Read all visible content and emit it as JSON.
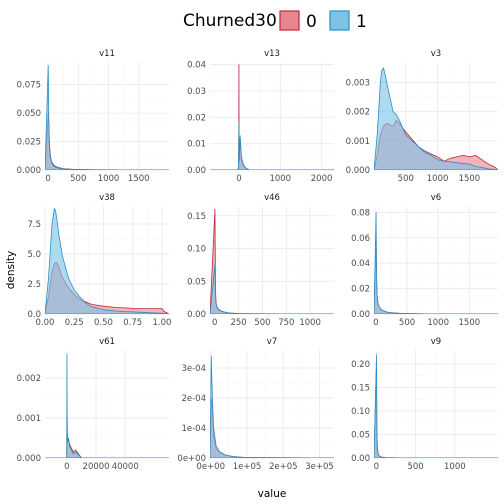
{
  "chart_data": {
    "type": "area",
    "facet_by": "variable",
    "xlabel": "value",
    "ylabel": "density",
    "grid": true,
    "legend": {
      "title": "Churned30",
      "position": "top",
      "items": [
        {
          "label": "0",
          "fill": "#E6868F",
          "stroke": "#C0283A"
        },
        {
          "label": "1",
          "fill": "#7CC4E6",
          "stroke": "#2A8FC4"
        }
      ]
    },
    "overlap_fill": "#7E84A9",
    "panels": [
      {
        "title": "v11",
        "xlim": [
          -50,
          2000
        ],
        "ylim": [
          0,
          0.095
        ],
        "xticks": [
          0,
          500,
          1000,
          1500
        ],
        "xtick_labels": [
          "0",
          "500",
          "1000",
          "1500"
        ],
        "yticks": [
          0,
          0.025,
          0.05,
          0.075
        ],
        "ytick_labels": [
          "0.000",
          "0.025",
          "0.050",
          "0.075"
        ],
        "series": [
          {
            "name": "0",
            "x": [
              -50,
              5,
              15,
              25,
              40,
              60,
              100,
              150,
              250,
              400,
              700,
              1200,
              2000
            ],
            "y": [
              0,
              0.05,
              0.038,
              0.022,
              0.012,
              0.007,
              0.004,
              0.0025,
              0.0012,
              0.0006,
              0.0003,
              0.0001,
              0
            ]
          },
          {
            "name": "1",
            "x": [
              -50,
              3,
              8,
              12,
              20,
              35,
              60,
              100,
              200,
              400,
              800,
              2000
            ],
            "y": [
              0,
              0.092,
              0.075,
              0.05,
              0.025,
              0.012,
              0.006,
              0.003,
              0.0012,
              0.0004,
              0.0001,
              0
            ]
          }
        ]
      },
      {
        "title": "v13",
        "xlim": [
          -700,
          2300
        ],
        "ylim": [
          0,
          0.041
        ],
        "xticks": [
          0,
          1000,
          2000
        ],
        "xtick_labels": [
          "0",
          "1000",
          "2000"
        ],
        "yticks": [
          0,
          0.01,
          0.02,
          0.03,
          0.04
        ],
        "ytick_labels": [
          "0.00",
          "0.01",
          "0.02",
          "0.03",
          "0.04"
        ],
        "series": [
          {
            "name": "0",
            "x": [
              -700,
              -30,
              -15,
              -8,
              -3,
              0,
              3,
              8,
              15,
              30,
              60,
              100,
              150,
              250,
              2300
            ],
            "y": [
              0,
              0,
              0.0005,
              0.003,
              0.015,
              0.04,
              0.015,
              0.003,
              0.006,
              0.012,
              0.004,
              0.002,
              0.0008,
              0,
              0
            ]
          },
          {
            "name": "1",
            "x": [
              -700,
              -30,
              -15,
              -8,
              -3,
              0,
              3,
              8,
              15,
              30,
              60,
              100,
              150,
              250,
              2300
            ],
            "y": [
              0,
              0,
              0.0008,
              0.004,
              0.012,
              0.018,
              0.012,
              0.004,
              0.007,
              0.013,
              0.005,
              0.0025,
              0.001,
              0,
              0
            ]
          }
        ]
      },
      {
        "title": "v3",
        "xlim": [
          0,
          1950
        ],
        "ylim": [
          0,
          0.0037
        ],
        "xticks": [
          500,
          1000,
          1500
        ],
        "xtick_labels": [
          "500",
          "1000",
          "1500"
        ],
        "yticks": [
          0,
          0.001,
          0.002,
          0.003
        ],
        "ytick_labels": [
          "0.000",
          "0.001",
          "0.002",
          "0.003"
        ],
        "series": [
          {
            "name": "0",
            "x": [
              0,
              50,
              100,
              150,
              200,
              250,
              300,
              350,
              400,
              450,
              500,
              600,
              700,
              800,
              900,
              1000,
              1100,
              1200,
              1300,
              1400,
              1500,
              1600,
              1700,
              1800,
              1900,
              1950
            ],
            "y": [
              0,
              0.0005,
              0.0012,
              0.0015,
              0.0016,
              0.00155,
              0.0015,
              0.0017,
              0.0016,
              0.00145,
              0.0013,
              0.00105,
              0.0008,
              0.00065,
              0.00055,
              0.00045,
              0.0003,
              0.0004,
              0.00045,
              0.0005,
              0.00045,
              0.0005,
              0.00035,
              0.0002,
              0.0001,
              0
            ]
          },
          {
            "name": "1",
            "x": [
              0,
              50,
              100,
              120,
              150,
              180,
              200,
              250,
              300,
              350,
              400,
              450,
              500,
              600,
              700,
              800,
              900,
              1000,
              1100,
              1200,
              1300,
              1400,
              1500,
              1600,
              1700,
              1800,
              1950
            ],
            "y": [
              0,
              0.0012,
              0.003,
              0.0034,
              0.0035,
              0.0032,
              0.003,
              0.0025,
              0.002,
              0.0019,
              0.0017,
              0.00145,
              0.0012,
              0.001,
              0.0008,
              0.0006,
              0.0005,
              0.00035,
              0.0003,
              0.00028,
              0.00025,
              0.00022,
              0.0002,
              0.00012,
              8e-05,
              4e-05,
              0
            ]
          }
        ]
      },
      {
        "title": "v38",
        "xlim": [
          0,
          1.06
        ],
        "ylim": [
          0,
          9.0
        ],
        "xticks": [
          0,
          0.25,
          0.5,
          0.75,
          1.0
        ],
        "xtick_labels": [
          "0.00",
          "0.25",
          "0.50",
          "0.75",
          "1.00"
        ],
        "yticks": [
          0,
          2.5,
          5.0,
          7.5
        ],
        "ytick_labels": [
          "0.0",
          "2.5",
          "5.0",
          "7.5"
        ],
        "series": [
          {
            "name": "0",
            "x": [
              0,
              0.03,
              0.06,
              0.08,
              0.1,
              0.12,
              0.15,
              0.2,
              0.25,
              0.3,
              0.35,
              0.4,
              0.5,
              0.6,
              0.7,
              0.8,
              0.9,
              1.0,
              1.02,
              1.06
            ],
            "y": [
              0,
              1.5,
              3.5,
              4.2,
              4.3,
              3.9,
              3.0,
              2.2,
              1.6,
              1.2,
              1.0,
              0.8,
              0.65,
              0.55,
              0.5,
              0.45,
              0.45,
              0.45,
              0.2,
              0
            ]
          },
          {
            "name": "1",
            "x": [
              0,
              0.03,
              0.06,
              0.08,
              0.09,
              0.1,
              0.12,
              0.15,
              0.2,
              0.25,
              0.3,
              0.35,
              0.4,
              0.5,
              0.6,
              0.7,
              0.8,
              0.9,
              1.0,
              1.06
            ],
            "y": [
              0,
              3.0,
              7.5,
              8.8,
              8.6,
              8.0,
              6.5,
              4.8,
              3.0,
              2.0,
              1.4,
              0.9,
              0.6,
              0.35,
              0.25,
              0.2,
              0.15,
              0.1,
              0.06,
              0
            ]
          }
        ]
      },
      {
        "title": "v46",
        "xlim": [
          -50,
          1250
        ],
        "ylim": [
          0,
          0.165
        ],
        "xticks": [
          0,
          250,
          500,
          750,
          1000
        ],
        "xtick_labels": [
          "0",
          "250",
          "500",
          "750",
          "1000"
        ],
        "yticks": [
          0,
          0.05,
          0.1,
          0.15
        ],
        "ytick_labels": [
          "0.00",
          "0.05",
          "0.10",
          "0.15"
        ],
        "series": [
          {
            "name": "0",
            "x": [
              -50,
              2,
              5,
              8,
              12,
              20,
              35,
              60,
              100,
              150,
              250,
              400,
              700,
              1250
            ],
            "y": [
              0,
              0.16,
              0.09,
              0.04,
              0.02,
              0.012,
              0.008,
              0.005,
              0.003,
              0.0015,
              0.0007,
              0.0003,
              0.0001,
              0
            ]
          },
          {
            "name": "1",
            "x": [
              -50,
              2,
              5,
              8,
              12,
              20,
              35,
              60,
              100,
              150,
              250,
              400,
              700,
              1250
            ],
            "y": [
              0,
              0.075,
              0.06,
              0.03,
              0.017,
              0.011,
              0.007,
              0.0045,
              0.0028,
              0.0014,
              0.0006,
              0.0003,
              0.0001,
              0
            ]
          }
        ]
      },
      {
        "title": "v6",
        "xlim": [
          -30,
          1960
        ],
        "ylim": [
          0,
          0.085
        ],
        "xticks": [
          0,
          500,
          1000,
          1500
        ],
        "xtick_labels": [
          "0",
          "500",
          "1000",
          "1500"
        ],
        "yticks": [
          0,
          0.02,
          0.04,
          0.06,
          0.08
        ],
        "ytick_labels": [
          "0.00",
          "0.02",
          "0.04",
          "0.06",
          "0.08"
        ],
        "series": [
          {
            "name": "0",
            "x": [
              -30,
              3,
              8,
              12,
              20,
              35,
              60,
              100,
              200,
              400,
              800,
              1960
            ],
            "y": [
              0,
              0.06,
              0.04,
              0.025,
              0.014,
              0.008,
              0.005,
              0.003,
              0.0012,
              0.0005,
              0.0001,
              0
            ]
          },
          {
            "name": "1",
            "x": [
              -30,
              3,
              8,
              12,
              20,
              35,
              60,
              100,
              200,
              400,
              800,
              1960
            ],
            "y": [
              0,
              0.08,
              0.05,
              0.028,
              0.015,
              0.008,
              0.005,
              0.003,
              0.0012,
              0.0004,
              0.0001,
              0
            ]
          }
        ]
      },
      {
        "title": "v61",
        "xlim": [
          -15000,
          70000
        ],
        "ylim": [
          0,
          0.0027
        ],
        "xticks": [
          0,
          20000,
          40000
        ],
        "xtick_labels": [
          "0",
          "20000",
          "40000"
        ],
        "yticks": [
          0,
          0.001,
          0.002
        ],
        "ytick_labels": [
          "0.000",
          "0.001",
          "0.002"
        ],
        "series": [
          {
            "name": "0",
            "x": [
              -15000,
              -100,
              50,
              200,
              500,
              1000,
              1800,
              3000,
              4500,
              6000,
              8000,
              10000,
              70000
            ],
            "y": [
              0,
              0,
              0.0012,
              0.0006,
              0.0004,
              0.0005,
              0.00035,
              0.00025,
              0.00015,
              0.0002,
              0.0001,
              0,
              0
            ]
          },
          {
            "name": "1",
            "x": [
              -15000,
              -100,
              50,
              200,
              500,
              1000,
              1800,
              3000,
              4500,
              6000,
              8000,
              10000,
              70000
            ],
            "y": [
              0,
              0,
              0.0026,
              0.0011,
              0.0004,
              0.0005,
              0.0003,
              0.0002,
              0.0001,
              0.00015,
              8e-05,
              0,
              0
            ]
          }
        ]
      },
      {
        "title": "v7",
        "xlim": [
          -2000,
          340000
        ],
        "ylim": [
          0,
          0.00036
        ],
        "xticks": [
          0,
          100000,
          200000,
          300000
        ],
        "xtick_labels": [
          "0e+00",
          "1e+05",
          "2e+05",
          "3e+05"
        ],
        "yticks": [
          0,
          0.0001,
          0.0002,
          0.0003
        ],
        "ytick_labels": [
          "0e+00",
          "1e-04",
          "2e-04",
          "3e-04"
        ],
        "series": [
          {
            "name": "0",
            "x": [
              -2000,
              1500,
              4000,
              8000,
              15000,
              25000,
              40000,
              60000,
              90000,
              150000,
              340000
            ],
            "y": [
              0,
              0.0002,
              0.00017,
              8e-05,
              3e-05,
              2e-05,
              1e-05,
              5e-06,
              2e-06,
              1e-06,
              0
            ]
          },
          {
            "name": "1",
            "x": [
              -2000,
              1500,
              4000,
              8000,
              15000,
              25000,
              40000,
              60000,
              90000,
              150000,
              340000
            ],
            "y": [
              0,
              0.00034,
              0.00022,
              0.0001,
              4e-05,
              2e-05,
              1e-05,
              5e-06,
              2e-06,
              1e-06,
              0
            ]
          }
        ]
      },
      {
        "title": "v9",
        "xlim": [
          -30,
          1550
        ],
        "ylim": [
          0,
          0.23
        ],
        "xticks": [
          0,
          500,
          1000
        ],
        "xtick_labels": [
          "0",
          "500",
          "1000"
        ],
        "yticks": [
          0,
          0.05,
          0.1,
          0.15,
          0.2
        ],
        "ytick_labels": [
          "0.00",
          "0.05",
          "0.10",
          "0.15",
          "0.20"
        ],
        "series": [
          {
            "name": "0",
            "x": [
              -30,
              2,
              4,
              6,
              9,
              14,
              22,
              35,
              60,
              120,
              300,
              1550
            ],
            "y": [
              0,
              0.2,
              0.14,
              0.08,
              0.04,
              0.02,
              0.01,
              0.005,
              0.002,
              0.0008,
              0.0002,
              0
            ]
          },
          {
            "name": "1",
            "x": [
              -30,
              2,
              4,
              6,
              9,
              14,
              22,
              35,
              60,
              120,
              300,
              1550
            ],
            "y": [
              0,
              0.22,
              0.15,
              0.07,
              0.035,
              0.017,
              0.009,
              0.004,
              0.0018,
              0.0007,
              0.0002,
              0
            ]
          }
        ]
      }
    ]
  }
}
